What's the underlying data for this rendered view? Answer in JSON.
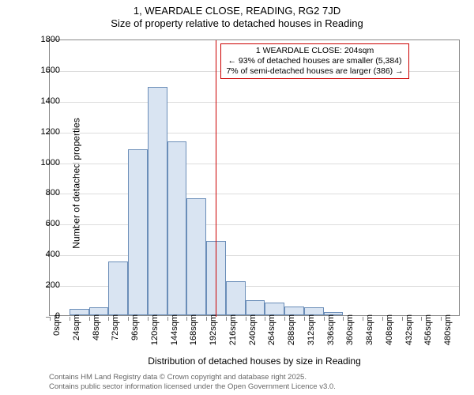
{
  "title": {
    "line1": "1, WEARDALE CLOSE, READING, RG2 7JD",
    "line2": "Size of property relative to detached houses in Reading"
  },
  "chart": {
    "type": "histogram",
    "background_color": "#ffffff",
    "grid_color": "#dddddd",
    "border_color": "#888888",
    "bar_fill": "#d9e4f2",
    "bar_stroke": "#6a8db8",
    "x": {
      "label": "Distribution of detached houses by size in Reading",
      "min": 0,
      "max": 504,
      "tick_step": 24,
      "tick_unit": "sqm",
      "label_fontsize": 12,
      "tick_fontsize": 11
    },
    "y": {
      "label": "Number of detached properties",
      "min": 0,
      "max": 1800,
      "tick_step": 200,
      "label_fontsize": 12,
      "tick_fontsize": 11
    },
    "bins": [
      {
        "start": 0,
        "value": 0
      },
      {
        "start": 24,
        "value": 40
      },
      {
        "start": 48,
        "value": 50
      },
      {
        "start": 72,
        "value": 350
      },
      {
        "start": 96,
        "value": 1080
      },
      {
        "start": 120,
        "value": 1485
      },
      {
        "start": 144,
        "value": 1130
      },
      {
        "start": 168,
        "value": 760
      },
      {
        "start": 192,
        "value": 485
      },
      {
        "start": 216,
        "value": 220
      },
      {
        "start": 240,
        "value": 100
      },
      {
        "start": 264,
        "value": 80
      },
      {
        "start": 288,
        "value": 55
      },
      {
        "start": 312,
        "value": 50
      },
      {
        "start": 336,
        "value": 20
      },
      {
        "start": 360,
        "value": 0
      },
      {
        "start": 384,
        "value": 0
      },
      {
        "start": 408,
        "value": 0
      },
      {
        "start": 432,
        "value": 0
      },
      {
        "start": 456,
        "value": 0
      },
      {
        "start": 480,
        "value": 0
      }
    ],
    "reference": {
      "value": 204,
      "line_color": "#cc0000",
      "callout": {
        "line1": "1 WEARDALE CLOSE: 204sqm",
        "line2": "← 93% of detached houses are smaller (5,384)",
        "line3": "7% of semi-detached houses are larger (386) →",
        "border_color": "#cc0000",
        "background": "#ffffff",
        "fontsize": 10.5
      }
    }
  },
  "footer": {
    "line1": "Contains HM Land Registry data © Crown copyright and database right 2025.",
    "line2": "Contains public sector information licensed under the Open Government Licence v3.0.",
    "color": "#666666",
    "fontsize": 9.5
  }
}
